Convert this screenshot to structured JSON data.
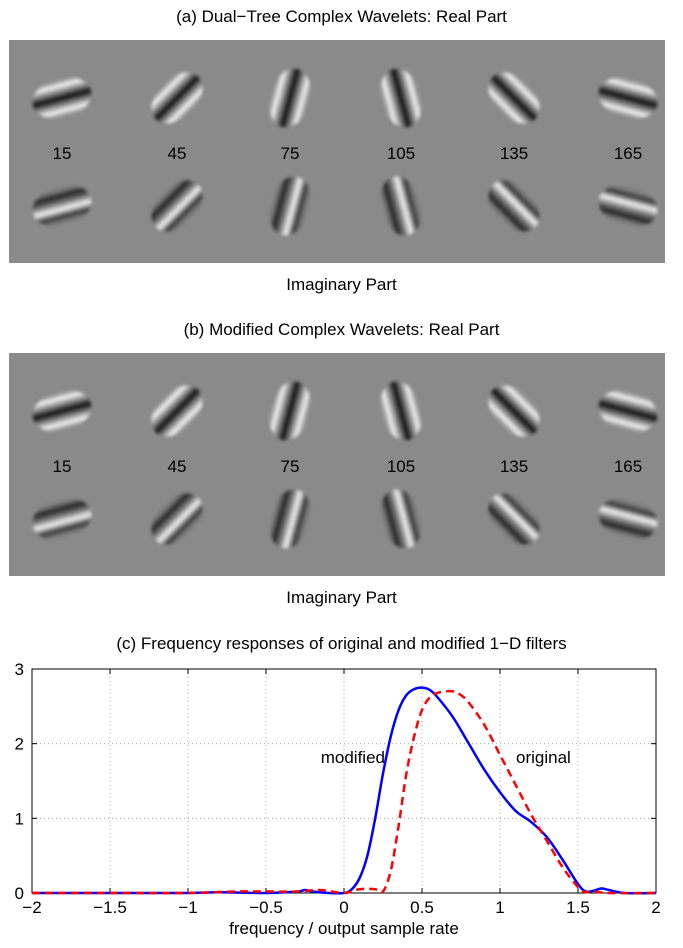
{
  "panel_a": {
    "title": "(a) Dual−Tree Complex Wavelets: Real Part",
    "subtitle": "Imaginary Part",
    "angle_labels": [
      "15",
      "45",
      "75",
      "105",
      "135",
      "165"
    ]
  },
  "panel_b": {
    "title": "(b) Modified Complex Wavelets: Real Part",
    "subtitle": "Imaginary Part",
    "angle_labels": [
      "15",
      "45",
      "75",
      "105",
      "135",
      "165"
    ]
  },
  "chart_data": {
    "type": "line",
    "title": "(c) Frequency responses of original and modified 1−D filters",
    "xlabel": "frequency / output sample rate",
    "ylabel": "",
    "xlim": [
      -2,
      2
    ],
    "ylim": [
      0,
      3
    ],
    "xticks": [
      -2,
      -1.5,
      -1,
      -0.5,
      0,
      0.5,
      1,
      1.5,
      2
    ],
    "xtick_labels": [
      "−2",
      "−1.5",
      "−1",
      "−0.5",
      "0",
      "0.5",
      "1",
      "1.5",
      "2"
    ],
    "yticks": [
      0,
      1,
      2,
      3
    ],
    "ytick_labels": [
      "0",
      "1",
      "2",
      "3"
    ],
    "grid": true,
    "series": [
      {
        "name": "modified",
        "color": "#0000ff",
        "style": "solid",
        "x": [
          -2,
          -1.5,
          -1,
          -0.8,
          -0.5,
          -0.3,
          -0.25,
          -0.2,
          -0.1,
          0,
          0.05,
          0.1,
          0.15,
          0.2,
          0.25,
          0.3,
          0.35,
          0.4,
          0.45,
          0.5,
          0.55,
          0.6,
          0.7,
          0.8,
          0.9,
          1.0,
          1.1,
          1.2,
          1.3,
          1.4,
          1.5,
          1.55,
          1.6,
          1.65,
          1.7,
          1.8,
          2
        ],
        "y": [
          0,
          0,
          0,
          0.01,
          0,
          0.02,
          0.04,
          0.02,
          0,
          0,
          0.05,
          0.2,
          0.5,
          1.0,
          1.6,
          2.1,
          2.45,
          2.65,
          2.73,
          2.75,
          2.72,
          2.62,
          2.35,
          2.0,
          1.65,
          1.35,
          1.1,
          0.95,
          0.75,
          0.45,
          0.12,
          0.02,
          0.03,
          0.06,
          0.04,
          0,
          0
        ]
      },
      {
        "name": "original",
        "color": "#ff0000",
        "style": "dashed",
        "x": [
          -2,
          -1.5,
          -1,
          -0.7,
          -0.5,
          -0.3,
          -0.15,
          0,
          0.1,
          0.2,
          0.25,
          0.3,
          0.35,
          0.4,
          0.45,
          0.5,
          0.55,
          0.6,
          0.65,
          0.7,
          0.75,
          0.8,
          0.9,
          1.0,
          1.1,
          1.2,
          1.3,
          1.4,
          1.5,
          1.55,
          1.6,
          1.7,
          2
        ],
        "y": [
          0,
          0,
          0,
          0.02,
          0.02,
          0.02,
          0.04,
          0,
          0.05,
          0.05,
          0.02,
          0.3,
          0.9,
          1.6,
          2.1,
          2.45,
          2.62,
          2.68,
          2.7,
          2.7,
          2.65,
          2.55,
          2.25,
          1.85,
          1.45,
          1.05,
          0.7,
          0.35,
          0.08,
          0.01,
          0.02,
          0,
          0
        ]
      }
    ],
    "annotations": [
      "modified",
      "original"
    ]
  }
}
